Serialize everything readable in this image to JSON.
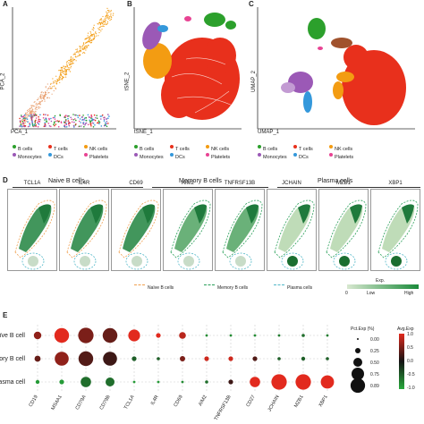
{
  "panels": {
    "A": {
      "letter": "A",
      "xlabel": "PCA_1",
      "ylabel": "PCA_2"
    },
    "B": {
      "letter": "B",
      "xlabel": "tSNE_1",
      "ylabel": "tSNE_2"
    },
    "C": {
      "letter": "C",
      "xlabel": "UMAP_1",
      "ylabel": "UMAP_2"
    },
    "D": {
      "letter": "D"
    },
    "E": {
      "letter": "E"
    }
  },
  "celltype_legend": [
    {
      "label": "B cells",
      "color": "#2ca02c"
    },
    {
      "label": "T cells",
      "color": "#e8301c"
    },
    {
      "label": "NK cells",
      "color": "#f39c12"
    },
    {
      "label": "Monocytes",
      "color": "#9b59b6"
    },
    {
      "label": "DCs",
      "color": "#3498db"
    },
    {
      "label": "Platelets",
      "color": "#e84393"
    }
  ],
  "panel_d": {
    "groups": [
      {
        "label": "Naive B cells",
        "genes": [
          "TCL1A",
          "IL4R",
          "CD69"
        ]
      },
      {
        "label": "Memory B cells",
        "genes": [
          "AIM2",
          "TNFRSF13B"
        ]
      },
      {
        "label": "Plasma cells",
        "genes": [
          "JCHAIN",
          "MZB1",
          "XBP1"
        ]
      }
    ],
    "outline_legend": [
      {
        "label": "Naïve B cells",
        "color": "#f0a050"
      },
      {
        "label": "Memory B cells",
        "color": "#2aa05a"
      },
      {
        "label": "Plasma cells",
        "color": "#52b8c8"
      }
    ],
    "colorbar": {
      "title": "Exp.",
      "min_label": "0",
      "low_label": "Low",
      "high_label": "High",
      "low_color": "#d8e8d0",
      "high_color": "#1a8a3a"
    }
  },
  "chart_data": {
    "type": "dotplot",
    "rows": [
      "Naïve B cell",
      "Memory B cell",
      "Plasma cell"
    ],
    "columns": [
      "CD19",
      "MS4A1",
      "CD79A",
      "CD79B",
      "TCL1A",
      "IL4R",
      "CD69",
      "AIM2",
      "TNFRSF13B",
      "CD27",
      "JCHAIN",
      "MZB1",
      "XBP1"
    ],
    "pct_exp": [
      [
        0.4,
        0.9,
        0.95,
        0.9,
        0.7,
        0.2,
        0.35,
        0.05,
        0.05,
        0.05,
        0.05,
        0.1,
        0.05
      ],
      [
        0.3,
        0.85,
        0.9,
        0.85,
        0.2,
        0.1,
        0.25,
        0.2,
        0.2,
        0.2,
        0.1,
        0.15,
        0.1
      ],
      [
        0.15,
        0.2,
        0.6,
        0.5,
        0.05,
        0.05,
        0.05,
        0.1,
        0.2,
        0.6,
        0.95,
        0.95,
        0.8
      ]
    ],
    "avg_exp": [
      [
        0.6,
        1.0,
        0.5,
        0.4,
        1.2,
        1.2,
        0.8,
        -0.8,
        -0.8,
        -0.8,
        -0.7,
        -0.6,
        -0.7
      ],
      [
        0.4,
        0.6,
        0.3,
        0.2,
        -0.5,
        -0.5,
        0.5,
        0.9,
        0.9,
        0.3,
        -0.5,
        -0.5,
        -0.5
      ],
      [
        -0.9,
        -0.9,
        -0.6,
        -0.6,
        -0.9,
        -0.9,
        -0.8,
        -0.6,
        0.2,
        1.0,
        1.2,
        1.2,
        1.2
      ]
    ],
    "size_legend": {
      "title": "Pct.Exp (%)",
      "labels": [
        "0.00",
        "0.25",
        "0.50",
        "0.75",
        "0.89"
      ],
      "values": [
        0.0,
        0.25,
        0.5,
        0.75,
        0.89
      ]
    },
    "color_legend": {
      "title": "Avg.Exp",
      "labels": [
        "1.0",
        "0.5",
        "0.0",
        "-0.5",
        "-1.0"
      ],
      "range": [
        -1.0,
        1.0
      ]
    }
  }
}
